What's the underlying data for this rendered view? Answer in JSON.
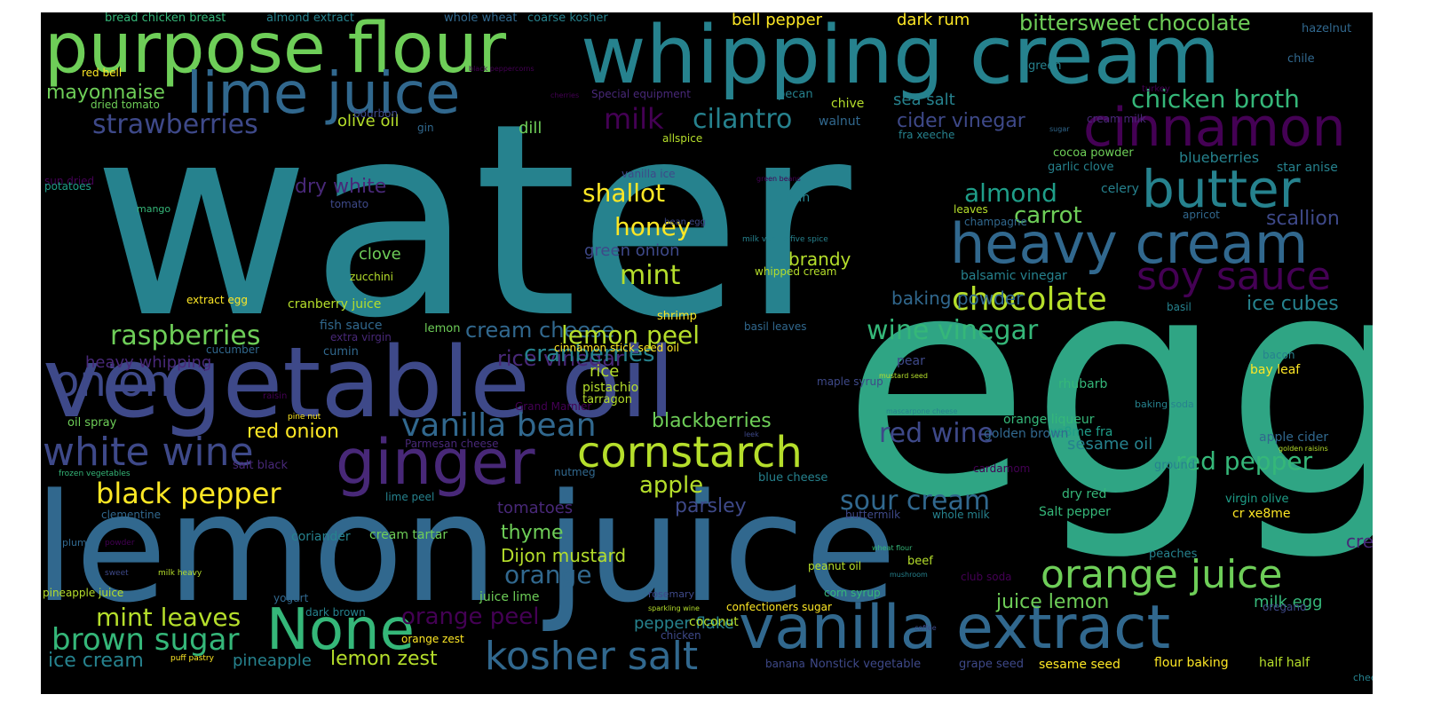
{
  "words": [
    {
      "text": "water"
    },
    {
      "text": "egg"
    },
    {
      "text": "lemon juice"
    },
    {
      "text": "vegetable oil"
    },
    {
      "text": "whipping cream"
    },
    {
      "text": "purpose flour"
    },
    {
      "text": "vanilla extract"
    },
    {
      "text": "lime juice"
    },
    {
      "text": "heavy cream"
    },
    {
      "text": "ginger"
    },
    {
      "text": "cinnamon"
    },
    {
      "text": "butter"
    },
    {
      "text": "cornstarch"
    },
    {
      "text": "white wine"
    },
    {
      "text": "None"
    },
    {
      "text": "orange juice"
    },
    {
      "text": "soy sauce"
    },
    {
      "text": "onion"
    },
    {
      "text": "vanilla bean"
    },
    {
      "text": "kosher salt"
    },
    {
      "text": "brown sugar"
    },
    {
      "text": "black pepper"
    },
    {
      "text": "raspberries"
    },
    {
      "text": "strawberries"
    },
    {
      "text": "chocolate"
    },
    {
      "text": "red wine"
    },
    {
      "text": "sour cream"
    },
    {
      "text": "chicken broth"
    },
    {
      "text": "bittersweet chocolate"
    },
    {
      "text": "shallot"
    },
    {
      "text": "cilantro"
    },
    {
      "text": "milk"
    },
    {
      "text": "wine vinegar"
    },
    {
      "text": "cream cheese"
    },
    {
      "text": "rice vinegar"
    },
    {
      "text": "cranberries"
    },
    {
      "text": "red pepper"
    },
    {
      "text": "almond"
    },
    {
      "text": "carrot"
    },
    {
      "text": "mint"
    },
    {
      "text": "honey"
    },
    {
      "text": "lemon peel"
    },
    {
      "text": "mint leaves"
    },
    {
      "text": "orange peel"
    },
    {
      "text": "orange"
    },
    {
      "text": "apple"
    },
    {
      "text": "ice cubes"
    },
    {
      "text": "mayonnaise"
    },
    {
      "text": "blackberries"
    },
    {
      "text": "lemon zest"
    },
    {
      "text": "ice cream"
    },
    {
      "text": "juice lemon"
    },
    {
      "text": "cream vanilla"
    },
    {
      "text": "dry white"
    },
    {
      "text": "red onion"
    },
    {
      "text": "scallion"
    },
    {
      "text": "baking powder"
    },
    {
      "text": "cider vinegar"
    },
    {
      "text": "brandy"
    },
    {
      "text": "thyme"
    },
    {
      "text": "Dijon mustard"
    },
    {
      "text": "parsley"
    },
    {
      "text": "pineapple"
    },
    {
      "text": "milk egg"
    },
    {
      "text": "clove"
    },
    {
      "text": "heavy whipping"
    },
    {
      "text": "sea salt"
    },
    {
      "text": "dill"
    },
    {
      "text": "green onion"
    },
    {
      "text": "tomatoes"
    },
    {
      "text": "olive oil"
    },
    {
      "text": "pepper flake"
    },
    {
      "text": "bell pepper"
    },
    {
      "text": "dark rum"
    },
    {
      "text": "blueberries"
    },
    {
      "text": "sesame oil"
    },
    {
      "text": "apple cider"
    },
    {
      "text": "rice"
    },
    {
      "text": "fish sauce"
    },
    {
      "text": "cranberry juice"
    },
    {
      "text": "Salt pepper"
    },
    {
      "text": "dry red"
    },
    {
      "text": "cr xe8me"
    },
    {
      "text": "xe8me fra"
    },
    {
      "text": "rhubarb"
    },
    {
      "text": "golden brown"
    },
    {
      "text": "orange liqueur"
    },
    {
      "text": "cream tartar"
    },
    {
      "text": "bay leaf"
    },
    {
      "text": "coriander"
    },
    {
      "text": "juice lime"
    },
    {
      "text": "flour baking"
    },
    {
      "text": "sesame seed"
    },
    {
      "text": "half half"
    },
    {
      "text": "confectioners sugar"
    },
    {
      "text": "coconut"
    },
    {
      "text": "cinnamon stick seed oil"
    },
    {
      "text": "pistachio"
    },
    {
      "text": "shrimp"
    },
    {
      "text": "chicken"
    },
    {
      "text": "dark brown"
    },
    {
      "text": "orange zest"
    },
    {
      "text": "Grand Marnier"
    },
    {
      "text": "celery"
    },
    {
      "text": "gelatin"
    },
    {
      "text": "whipped cream"
    },
    {
      "text": "balsamic vinegar"
    },
    {
      "text": "champagne"
    },
    {
      "text": "leaves"
    },
    {
      "text": "apricot"
    },
    {
      "text": "star anise"
    },
    {
      "text": "garlic clove"
    },
    {
      "text": "cocoa powder"
    },
    {
      "text": "fra xeeche"
    },
    {
      "text": "walnut"
    },
    {
      "text": "chive"
    },
    {
      "text": "pecan"
    },
    {
      "text": "Special equipment"
    },
    {
      "text": "allspice"
    },
    {
      "text": "gin"
    },
    {
      "text": "bourbon"
    },
    {
      "text": "dried tomato"
    },
    {
      "text": "red bell"
    },
    {
      "text": "bread chicken breast"
    },
    {
      "text": "almond extract"
    },
    {
      "text": "whole wheat"
    },
    {
      "text": "coarse kosher"
    },
    {
      "text": "hazelnut"
    },
    {
      "text": "chile"
    },
    {
      "text": "green"
    },
    {
      "text": "cream milk"
    },
    {
      "text": "turkey"
    },
    {
      "text": "sun dried"
    },
    {
      "text": "mango"
    },
    {
      "text": "potatoes"
    },
    {
      "text": "tomato"
    },
    {
      "text": "extract egg"
    },
    {
      "text": "zucchini"
    },
    {
      "text": "oil spray"
    },
    {
      "text": "raisin"
    },
    {
      "text": "pine nut"
    },
    {
      "text": "Parmesan cheese"
    },
    {
      "text": "salt black"
    },
    {
      "text": "frozen vegetables"
    },
    {
      "text": "pineapple juice"
    },
    {
      "text": "clementine"
    },
    {
      "text": "plum"
    },
    {
      "text": "powder"
    },
    {
      "text": "sweet"
    },
    {
      "text": "milk heavy"
    },
    {
      "text": "yogurt"
    },
    {
      "text": "lime peel"
    },
    {
      "text": "nutmeg"
    },
    {
      "text": "blue cheese"
    },
    {
      "text": "peanut oil"
    },
    {
      "text": "corn syrup"
    },
    {
      "text": "rosemary"
    },
    {
      "text": "buttermilk"
    },
    {
      "text": "whole milk"
    },
    {
      "text": "beef"
    },
    {
      "text": "mushroom"
    },
    {
      "text": "wheat flour"
    },
    {
      "text": "club soda"
    },
    {
      "text": "peaches"
    },
    {
      "text": "oregano"
    },
    {
      "text": "virgin olive"
    },
    {
      "text": "cardamom"
    },
    {
      "text": "ground"
    },
    {
      "text": "baking soda"
    },
    {
      "text": "leek"
    },
    {
      "text": "mascarpone cheese"
    },
    {
      "text": "mustard seed"
    },
    {
      "text": "maple syrup"
    },
    {
      "text": "pear"
    },
    {
      "text": "basil leaves"
    },
    {
      "text": "basil"
    },
    {
      "text": "bacon"
    },
    {
      "text": "golden raisins"
    },
    {
      "text": "cheese dressing"
    },
    {
      "text": "lemon"
    },
    {
      "text": "extra virgin"
    },
    {
      "text": "cumin"
    },
    {
      "text": "cucumber"
    },
    {
      "text": "tarragon"
    },
    {
      "text": "sparkling wine"
    },
    {
      "text": "coffee"
    },
    {
      "text": "banana"
    },
    {
      "text": "Nonstick vegetable"
    },
    {
      "text": "grape seed"
    },
    {
      "text": "puff pastry"
    },
    {
      "text": "vanilla ice"
    },
    {
      "text": "bean egg"
    },
    {
      "text": "milk vanilla"
    },
    {
      "text": "five spice"
    },
    {
      "text": "green beans"
    },
    {
      "text": "sugar"
    },
    {
      "text": "cherries"
    },
    {
      "text": "black peppercorns"
    }
  ],
  "colors": {
    "background": "#000000",
    "palette": [
      "#440154",
      "#482878",
      "#3e4989",
      "#31688e",
      "#26828e",
      "#1f9e89",
      "#35b779",
      "#6ece58",
      "#b5de2b",
      "#fde725"
    ]
  }
}
